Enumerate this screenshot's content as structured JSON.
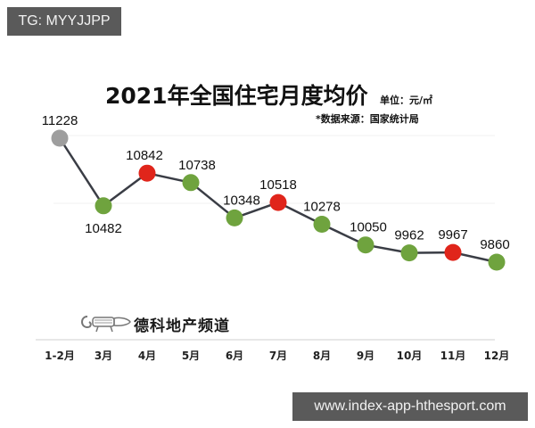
{
  "watermarks": {
    "top": "TG: MYYJJPP",
    "bottom": "www.index-app-hthesport.com"
  },
  "header": {
    "title": "2021年全国住宅月度均价",
    "unit": "单位：元/㎡",
    "source": "*数据来源：国家统计局"
  },
  "brand": {
    "name": "德科地产频道",
    "logo_icon": "lizard-logo-icon"
  },
  "colors": {
    "line": "#3a3d45",
    "gray": "#9e9e9e",
    "green": "#6fa33e",
    "red": "#e0251b",
    "grid": "#eeeeee",
    "axis": "#cccccc"
  },
  "chart_data": {
    "type": "line",
    "title": "2021年全国住宅月度均价",
    "subtitle": "单位：元/㎡  *数据来源：国家统计局",
    "xlabel": "",
    "ylabel": "元/㎡",
    "categories": [
      "1-2月",
      "3月",
      "4月",
      "5月",
      "6月",
      "7月",
      "8月",
      "9月",
      "10月",
      "11月",
      "12月"
    ],
    "values": [
      11228,
      10482,
      10842,
      10738,
      10348,
      10518,
      10278,
      10050,
      9962,
      9967,
      9860
    ],
    "point_colors": [
      "gray",
      "green",
      "red",
      "green",
      "green",
      "red",
      "green",
      "green",
      "green",
      "red",
      "green"
    ],
    "point_color_meaning": "red = increase vs previous month, green = decrease, gray = first period",
    "data_labels": true,
    "grid": true,
    "legend": "none",
    "ylim": [
      9800,
      11300
    ]
  }
}
